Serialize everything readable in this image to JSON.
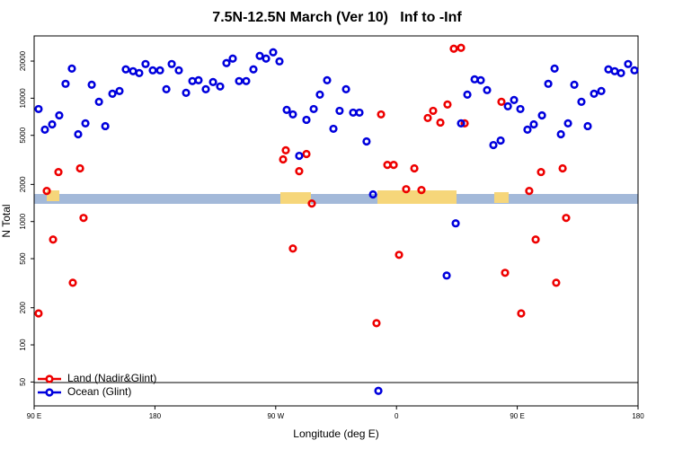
{
  "chart_data": {
    "type": "scatter",
    "title": "7.5N-12.5N March (Ver 10)   Inf to -Inf",
    "x_label": "Longitude (deg E)",
    "y_label": "N Total",
    "xlim": [
      90,
      540
    ],
    "xticks": [
      {
        "value": 90,
        "label": "90 E"
      },
      180,
      {
        "value": 270,
        "label": "90 W"
      },
      {
        "value": 360,
        "label": "0"
      },
      {
        "value": 450,
        "label": "90 E"
      },
      {
        "value": 540,
        "label": "180"
      }
    ],
    "ylim": [
      32,
      32000
    ],
    "log_y": true,
    "yticks": [
      50,
      100,
      200,
      500,
      1000,
      2000,
      5000,
      10000,
      20000
    ],
    "legend": "bottom-left",
    "series": [
      {
        "name": "Land (Nadir&Glint)",
        "color": "#ee0000",
        "x": [
          93.3,
          99.4,
          104.1,
          108.1,
          118.8,
          124.2,
          126.8,
          275.5,
          277.5,
          282.8,
          287.5,
          292.9,
          296.9,
          345.1,
          348.5,
          353.2,
          357.9,
          361.9,
          367.2,
          373.3,
          378.6,
          383.3,
          387.3,
          392.7,
          398.0,
          402.7,
          408.1,
          410.8,
          438.2,
          440.9,
          452.9,
          458.9,
          463.7,
          467.7,
          479.0,
          483.8,
          486.4
        ],
        "values": [
          180,
          1770,
          715,
          2520,
          319,
          2700,
          1070,
          3190,
          3780,
          604,
          2560,
          3530,
          1400,
          150,
          7390,
          2880,
          2880,
          537,
          1830,
          2700,
          1800,
          6910,
          7900,
          6350,
          8890,
          25200,
          25620,
          6250,
          9350,
          384,
          180,
          1770,
          715,
          2520,
          319,
          2700,
          1070
        ]
      },
      {
        "name": "Ocean (Glint)",
        "color": "#0000dd",
        "x": [
          93.3,
          98.0,
          103.4,
          108.7,
          113.4,
          118.1,
          122.8,
          128.2,
          132.9,
          138.3,
          143.0,
          148.3,
          153.6,
          158.3,
          163.7,
          168.3,
          173.0,
          178.4,
          183.8,
          188.5,
          192.5,
          197.8,
          203.2,
          207.9,
          212.5,
          217.9,
          223.3,
          228.6,
          233.3,
          238.0,
          242.7,
          248.0,
          253.4,
          258.1,
          262.8,
          268.1,
          272.8,
          278.2,
          282.8,
          287.5,
          292.9,
          298.3,
          302.9,
          308.3,
          313.0,
          317.6,
          322.4,
          327.7,
          332.4,
          337.7,
          342.5,
          346.5,
          397.4,
          404.1,
          408.1,
          412.8,
          418.2,
          422.8,
          427.5,
          432.2,
          437.6,
          443.0,
          447.6,
          452.3,
          457.6,
          462.3,
          468.4,
          473.1,
          477.8,
          482.5,
          487.8,
          492.5,
          497.8,
          502.5,
          507.2,
          512.6,
          517.9,
          522.6,
          527.3,
          532.6,
          537.3
        ],
        "values": [
          8170,
          5560,
          6140,
          7260,
          13090,
          17400,
          5100,
          6250,
          12860,
          9350,
          5940,
          10870,
          11430,
          17140,
          16560,
          16000,
          18930,
          16830,
          16830,
          11830,
          18930,
          16830,
          11060,
          13770,
          13990,
          11830,
          13530,
          12450,
          19260,
          20950,
          13770,
          13770,
          17140,
          22030,
          20950,
          23560,
          19900,
          8040,
          7390,
          3410,
          6680,
          8170,
          10690,
          13990,
          5650,
          7900,
          11830,
          7640,
          7640,
          4460,
          1660,
          42.4,
          365,
          967,
          6250,
          10690,
          14230,
          13990,
          11640,
          4170,
          4540,
          8600,
          9670,
          8170,
          5560,
          6140,
          7260,
          13090,
          17400,
          5100,
          6250,
          12860,
          9350,
          5940,
          10870,
          11430,
          17140,
          16560,
          16000,
          18930,
          16830
        ]
      }
    ]
  }
}
